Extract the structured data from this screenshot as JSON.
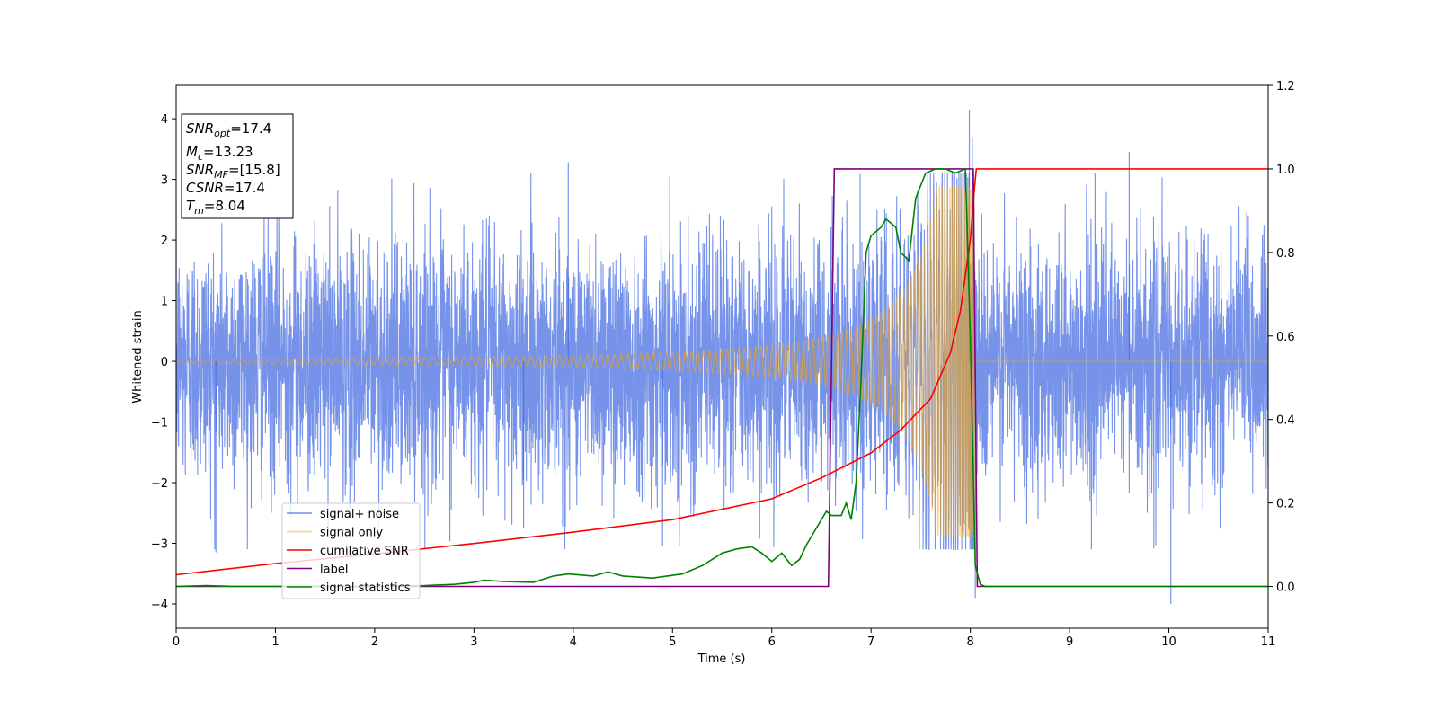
{
  "chart_data": {
    "type": "line",
    "xlabel": "Time (s)",
    "ylabel": "Whitened strain",
    "xlim": [
      0,
      11
    ],
    "ylim_left": [
      -4.4,
      4.55
    ],
    "ylim_right": [
      -0.1,
      1.2
    ],
    "xticks": [
      0,
      1,
      2,
      3,
      4,
      5,
      6,
      7,
      8,
      9,
      10,
      11
    ],
    "yticks_left": [
      -4,
      -3,
      -2,
      -1,
      0,
      1,
      2,
      3,
      4
    ],
    "yticks_right": [
      0.0,
      0.2,
      0.4,
      0.6,
      0.8,
      1.0,
      1.2
    ],
    "legend_position": "lower-left",
    "annotation": {
      "lines": [
        {
          "main": "SNR",
          "sub": "opt",
          "rest": "=17.4"
        },
        {
          "main": "M",
          "sub": "c",
          "rest": "=13.23"
        },
        {
          "main": "SNR",
          "sub": "MF",
          "rest": "=[15.8]"
        },
        {
          "main": "CSNR",
          "sub": "",
          "rest": "=17.4"
        },
        {
          "main": "T",
          "sub": "m",
          "rest": "=8.04"
        }
      ]
    },
    "series": [
      {
        "name": "signal+ noise",
        "axis": "left",
        "color": "#4169e1",
        "std": 1.0,
        "extremes": [
          [
            0.4,
            -3.15
          ],
          [
            3.95,
            3.28
          ],
          [
            7.99,
            4.15
          ],
          [
            8.02,
            3.7
          ],
          [
            8.05,
            -3.9
          ],
          [
            9.6,
            3.45
          ],
          [
            10.02,
            -4.0
          ],
          [
            4.9,
            -3.05
          ],
          [
            3.5,
            -2.75
          ]
        ]
      },
      {
        "name": "signal only",
        "axis": "left",
        "color": "#ffa500",
        "t_merge": 8.04,
        "amp_start": 0.04,
        "amp_peak": 2.9
      },
      {
        "name": "cumilative SNR",
        "axis": "right",
        "color": "#ff0000",
        "x": [
          0,
          1,
          2,
          3,
          4,
          5,
          6,
          6.5,
          7,
          7.3,
          7.6,
          7.8,
          7.9,
          8.0,
          8.04,
          8.06,
          11
        ],
        "y": [
          0.028,
          0.055,
          0.078,
          0.103,
          0.13,
          0.16,
          0.21,
          0.26,
          0.32,
          0.375,
          0.45,
          0.56,
          0.66,
          0.83,
          0.95,
          1.0,
          1.0
        ]
      },
      {
        "name": "label",
        "axis": "right",
        "color": "#800080",
        "x": [
          0,
          6.57,
          6.63,
          8.03,
          8.07,
          11
        ],
        "y": [
          0,
          0,
          1,
          1,
          0,
          0
        ]
      },
      {
        "name": "signal statistics",
        "axis": "right",
        "color": "#008000",
        "x": [
          0,
          0.3,
          0.6,
          1,
          1.5,
          2,
          2.5,
          2.8,
          3.0,
          3.1,
          3.3,
          3.6,
          3.8,
          3.95,
          4.2,
          4.35,
          4.5,
          4.8,
          5.1,
          5.3,
          5.5,
          5.65,
          5.8,
          5.9,
          6.0,
          6.1,
          6.2,
          6.28,
          6.35,
          6.45,
          6.55,
          6.6,
          6.7,
          6.75,
          6.8,
          6.85,
          6.9,
          6.95,
          7.0,
          7.05,
          7.1,
          7.15,
          7.2,
          7.25,
          7.3,
          7.38,
          7.45,
          7.55,
          7.65,
          7.75,
          7.85,
          7.95,
          8.0,
          8.05,
          8.1,
          8.15,
          8.5,
          11
        ],
        "y": [
          0,
          0.002,
          0,
          0,
          0,
          0,
          0.002,
          0.005,
          0.01,
          0.015,
          0.012,
          0.01,
          0.025,
          0.03,
          0.025,
          0.035,
          0.025,
          0.02,
          0.03,
          0.05,
          0.08,
          0.09,
          0.095,
          0.08,
          0.06,
          0.08,
          0.05,
          0.065,
          0.1,
          0.14,
          0.18,
          0.17,
          0.17,
          0.2,
          0.16,
          0.25,
          0.5,
          0.8,
          0.84,
          0.85,
          0.86,
          0.88,
          0.87,
          0.86,
          0.8,
          0.78,
          0.93,
          0.99,
          1.0,
          1.0,
          0.99,
          1.0,
          0.6,
          0.05,
          0.005,
          0,
          0,
          0
        ]
      }
    ]
  }
}
